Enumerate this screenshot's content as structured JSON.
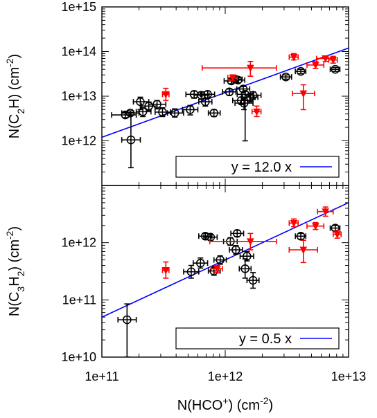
{
  "chart_data": [
    {
      "type": "scatter",
      "x_scale": "log",
      "y_scale": "log",
      "xlim": [
        100000000000.0,
        10000000000000.0
      ],
      "ylim": [
        100000000000.0,
        1000000000000000.0
      ],
      "yticks": [
        "1e+12",
        "1e+13",
        "1e+14",
        "1e+15"
      ],
      "ylabel_parts": [
        "N(C",
        "2",
        "H) (cm",
        "-2",
        ")"
      ],
      "legend": {
        "label": "y = 12.0 x",
        "position": "bottom-right"
      },
      "fit": {
        "slope": 12.0,
        "color": "#0000ff"
      },
      "colors": {
        "black_series": "#000000",
        "red_series": "#ff0000"
      },
      "black_points": [
        {
          "x": 172000000000.0,
          "y": 1050000000000.0,
          "xerr": [
            145000000000.0,
            205000000000.0
          ],
          "yerr": [
            250000000000.0,
            4300000000000.0
          ]
        },
        {
          "x": 155000000000.0,
          "y": 3800000000000.0,
          "xerr": [
            120000000000.0,
            190000000000.0
          ],
          "yerr": [
            3300000000000.0,
            4400000000000.0
          ]
        },
        {
          "x": 170000000000.0,
          "y": 4200000000000.0,
          "xerr": [
            145000000000.0,
            200000000000.0
          ],
          "yerr": [
            3700000000000.0,
            4700000000000.0
          ]
        },
        {
          "x": 205000000000.0,
          "y": 7500000000000.0,
          "xerr": [
            180000000000.0,
            240000000000.0
          ],
          "yerr": [
            5000000000000.0,
            9500000000000.0
          ]
        },
        {
          "x": 215000000000.0,
          "y": 4500000000000.0,
          "xerr": [
            190000000000.0,
            250000000000.0
          ],
          "yerr": [
            3500000000000.0,
            5500000000000.0
          ]
        },
        {
          "x": 240000000000.0,
          "y": 6000000000000.0,
          "xerr": [
            210000000000.0,
            280000000000.0
          ],
          "yerr": [
            4800000000000.0,
            7400000000000.0
          ]
        },
        {
          "x": 280000000000.0,
          "y": 6600000000000.0,
          "xerr": [
            240000000000.0,
            330000000000.0
          ],
          "yerr": [
            5200000000000.0,
            8000000000000.0
          ]
        },
        {
          "x": 310000000000.0,
          "y": 4400000000000.0,
          "xerr": [
            270000000000.0,
            360000000000.0
          ],
          "yerr": [
            3500000000000.0,
            5500000000000.0
          ]
        },
        {
          "x": 390000000000.0,
          "y": 4200000000000.0,
          "xerr": [
            340000000000.0,
            460000000000.0
          ],
          "yerr": [
            3400000000000.0,
            5200000000000.0
          ]
        },
        {
          "x": 520000000000.0,
          "y": 5000000000000.0,
          "xerr": [
            450000000000.0,
            600000000000.0
          ],
          "yerr": [
            3800000000000.0,
            6200000000000.0
          ]
        },
        {
          "x": 560000000000.0,
          "y": 11000000000000.0,
          "xerr": [
            480000000000.0,
            650000000000.0
          ],
          "yerr": [
            9000000000000.0,
            13000000000000.0
          ]
        },
        {
          "x": 640000000000.0,
          "y": 10500000000000.0,
          "xerr": [
            560000000000.0,
            740000000000.0
          ],
          "yerr": [
            8500000000000.0,
            12500000000000.0
          ]
        },
        {
          "x": 720000000000.0,
          "y": 11000000000000.0,
          "xerr": [
            630000000000.0,
            820000000000.0
          ],
          "yerr": [
            9000000000000.0,
            13000000000000.0
          ]
        },
        {
          "x": 690000000000.0,
          "y": 7500000000000.0,
          "xerr": [
            610000000000.0,
            780000000000.0
          ],
          "yerr": [
            6000000000000.0,
            9000000000000.0
          ]
        },
        {
          "x": 810000000000.0,
          "y": 4200000000000.0,
          "xerr": [
            730000000000.0,
            910000000000.0
          ],
          "yerr": [
            3500000000000.0,
            5000000000000.0
          ]
        },
        {
          "x": 1080000000000.0,
          "y": 12500000000000.0,
          "xerr": [
            950000000000.0,
            1220000000000.0
          ],
          "yerr": [
            10500000000000.0,
            14500000000000.0
          ]
        },
        {
          "x": 1120000000000.0,
          "y": 22000000000000.0,
          "xerr": [
            980000000000.0,
            1280000000000.0
          ],
          "yerr": [
            19000000000000.0,
            25000000000000.0
          ]
        },
        {
          "x": 1200000000000.0,
          "y": 24000000000000.0,
          "xerr": [
            1050000000000.0,
            1370000000000.0
          ],
          "yerr": [
            21000000000000.0,
            27000000000000.0
          ]
        },
        {
          "x": 1270000000000.0,
          "y": 23000000000000.0,
          "xerr": [
            1120000000000.0,
            1440000000000.0
          ],
          "yerr": [
            20000000000000.0,
            26000000000000.0
          ]
        },
        {
          "x": 1400000000000.0,
          "y": 14500000000000.0,
          "xerr": [
            1240000000000.0,
            1580000000000.0
          ],
          "yerr": [
            12500000000000.0,
            16500000000000.0
          ]
        },
        {
          "x": 1350000000000.0,
          "y": 8000000000000.0,
          "xerr": [
            1150000000000.0,
            1580000000000.0
          ],
          "yerr": [
            6500000000000.0,
            9500000000000.0
          ]
        },
        {
          "x": 1420000000000.0,
          "y": 7000000000000.0,
          "xerr": [
            1200000000000.0,
            1680000000000.0
          ],
          "yerr": [
            5000000000000.0,
            9000000000000.0
          ]
        },
        {
          "x": 1450000000000.0,
          "y": 11000000000000.0,
          "xerr": [
            1250000000000.0,
            1700000000000.0
          ],
          "yerr": [
            1000000000000.0,
            13000000000000.0
          ]
        },
        {
          "x": 1600000000000.0,
          "y": 9500000000000.0,
          "xerr": [
            1380000000000.0,
            1840000000000.0
          ],
          "yerr": [
            7500000000000.0,
            11500000000000.0
          ]
        },
        {
          "x": 1680000000000.0,
          "y": 10500000000000.0,
          "xerr": [
            1450000000000.0,
            1950000000000.0
          ],
          "yerr": [
            8500000000000.0,
            12500000000000.0
          ]
        },
        {
          "x": 3100000000000.0,
          "y": 27000000000000.0,
          "xerr": [
            2800000000000.0,
            3450000000000.0
          ],
          "yerr": [
            24000000000000.0,
            30000000000000.0
          ]
        },
        {
          "x": 4100000000000.0,
          "y": 36000000000000.0,
          "xerr": [
            3700000000000.0,
            4500000000000.0
          ],
          "yerr": [
            32000000000000.0,
            40000000000000.0
          ]
        },
        {
          "x": 7800000000000.0,
          "y": 40000000000000.0,
          "xerr": [
            7100000000000.0,
            8500000000000.0
          ],
          "yerr": [
            36000000000000.0,
            44000000000000.0
          ]
        }
      ],
      "red_points": [
        {
          "x": 330000000000.0,
          "y": 11000000000000.0,
          "xerr": [
            310000000000.0,
            350000000000.0
          ],
          "yerr": [
            8000000000000.0,
            15000000000000.0
          ]
        },
        {
          "x": 1600000000000.0,
          "y": 43000000000000.0,
          "xerr": [
            650000000000.0,
            2600000000000.0
          ],
          "yerr": [
            28000000000000.0,
            60000000000000.0
          ]
        },
        {
          "x": 1150000000000.0,
          "y": 26000000000000.0,
          "xerr": [
            1050000000000.0,
            1250000000000.0
          ],
          "yerr": [
            22000000000000.0,
            30000000000000.0
          ]
        },
        {
          "x": 1800000000000.0,
          "y": 4500000000000.0,
          "xerr": [
            1650000000000.0,
            1950000000000.0
          ],
          "yerr": [
            3500000000000.0,
            6000000000000.0
          ]
        },
        {
          "x": 3600000000000.0,
          "y": 75000000000000.0,
          "xerr": [
            3300000000000.0,
            3900000000000.0
          ],
          "yerr": [
            65000000000000.0,
            90000000000000.0
          ]
        },
        {
          "x": 4300000000000.0,
          "y": 11500000000000.0,
          "xerr": [
            3500000000000.0,
            5300000000000.0
          ],
          "yerr": [
            5000000000000.0,
            18000000000000.0
          ]
        },
        {
          "x": 5400000000000.0,
          "y": 50000000000000.0,
          "xerr": [
            4600000000000.0,
            6300000000000.0
          ],
          "yerr": [
            42000000000000.0,
            59000000000000.0
          ]
        },
        {
          "x": 6500000000000.0,
          "y": 70000000000000.0,
          "xerr": [
            5500000000000.0,
            7600000000000.0
          ],
          "yerr": [
            60000000000000.0,
            80000000000000.0
          ]
        },
        {
          "x": 7500000000000.0,
          "y": 65000000000000.0,
          "xerr": [
            6900000000000.0,
            8100000000000.0
          ],
          "yerr": [
            55000000000000.0,
            78000000000000.0
          ]
        }
      ]
    },
    {
      "type": "scatter",
      "x_scale": "log",
      "y_scale": "log",
      "xlim": [
        100000000000.0,
        10000000000000.0
      ],
      "ylim": [
        10000000000.0,
        10000000000000.0
      ],
      "xticks": [
        "1e+11",
        "1e+12",
        "1e+13"
      ],
      "yticks": [
        "1e+10",
        "1e+11",
        "1e+12"
      ],
      "xlabel_parts": [
        "N(HCO",
        "+",
        ") (cm",
        "-2",
        ")"
      ],
      "ylabel_parts": [
        "N(C",
        "3",
        "H",
        "2",
        ") (cm",
        "-2",
        ")"
      ],
      "legend": {
        "label": "y = 0.5 x",
        "position": "bottom-right"
      },
      "fit": {
        "slope": 0.5,
        "color": "#0000ff"
      },
      "colors": {
        "black_series": "#000000",
        "red_series": "#ff0000"
      },
      "black_points": [
        {
          "x": 160000000000.0,
          "y": 45000000000.0,
          "xerr": [
            135000000000.0,
            190000000000.0
          ],
          "yerr": [
            10000000000.0,
            85000000000.0
          ]
        },
        {
          "x": 530000000000.0,
          "y": 310000000000.0,
          "xerr": [
            460000000000.0,
            610000000000.0
          ],
          "yerr": [
            240000000000.0,
            400000000000.0
          ]
        },
        {
          "x": 630000000000.0,
          "y": 440000000000.0,
          "xerr": [
            550000000000.0,
            720000000000.0
          ],
          "yerr": [
            360000000000.0,
            540000000000.0
          ]
        },
        {
          "x": 690000000000.0,
          "y": 1300000000000.0,
          "xerr": [
            610000000000.0,
            780000000000.0
          ],
          "yerr": [
            1150000000000.0,
            1450000000000.0
          ]
        },
        {
          "x": 760000000000.0,
          "y": 1250000000000.0,
          "xerr": [
            670000000000.0,
            860000000000.0
          ],
          "yerr": [
            1100000000000.0,
            1400000000000.0
          ]
        },
        {
          "x": 810000000000.0,
          "y": 320000000000.0,
          "xerr": [
            730000000000.0,
            910000000000.0
          ],
          "yerr": [
            270000000000.0,
            380000000000.0
          ]
        },
        {
          "x": 910000000000.0,
          "y": 500000000000.0,
          "xerr": [
            810000000000.0,
            1020000000000.0
          ],
          "yerr": [
            420000000000.0,
            590000000000.0
          ]
        },
        {
          "x": 1100000000000.0,
          "y": 1050000000000.0,
          "xerr": [
            970000000000.0,
            1250000000000.0
          ],
          "yerr": [
            900000000000.0,
            1220000000000.0
          ]
        },
        {
          "x": 1220000000000.0,
          "y": 750000000000.0,
          "xerr": [
            1080000000000.0,
            1380000000000.0
          ],
          "yerr": [
            630000000000.0,
            890000000000.0
          ]
        },
        {
          "x": 1250000000000.0,
          "y": 1450000000000.0,
          "xerr": [
            1110000000000.0,
            1410000000000.0
          ],
          "yerr": [
            1280000000000.0,
            1650000000000.0
          ]
        },
        {
          "x": 1450000000000.0,
          "y": 350000000000.0,
          "xerr": [
            1300000000000.0,
            1620000000000.0
          ],
          "yerr": [
            240000000000.0,
            520000000000.0
          ]
        },
        {
          "x": 1500000000000.0,
          "y": 580000000000.0,
          "xerr": [
            1320000000000.0,
            1700000000000.0
          ],
          "yerr": [
            480000000000.0,
            700000000000.0
          ]
        },
        {
          "x": 1680000000000.0,
          "y": 220000000000.0,
          "xerr": [
            1500000000000.0,
            1880000000000.0
          ],
          "yerr": [
            160000000000.0,
            300000000000.0
          ]
        },
        {
          "x": 4100000000000.0,
          "y": 1300000000000.0,
          "xerr": [
            3700000000000.0,
            4500000000000.0
          ],
          "yerr": [
            1150000000000.0,
            1450000000000.0
          ]
        },
        {
          "x": 7800000000000.0,
          "y": 1800000000000.0,
          "xerr": [
            7100000000000.0,
            8500000000000.0
          ],
          "yerr": [
            1600000000000.0,
            2000000000000.0
          ]
        }
      ],
      "red_points": [
        {
          "x": 330000000000.0,
          "y": 330000000000.0,
          "xerr": [
            310000000000.0,
            350000000000.0
          ],
          "yerr": [
            240000000000.0,
            460000000000.0
          ]
        },
        {
          "x": 860000000000.0,
          "y": 350000000000.0,
          "xerr": [
            770000000000.0,
            950000000000.0
          ],
          "yerr": [
            300000000000.0,
            400000000000.0
          ]
        },
        {
          "x": 1600000000000.0,
          "y": 1050000000000.0,
          "xerr": [
            750000000000.0,
            2600000000000.0
          ],
          "yerr": [
            750000000000.0,
            1450000000000.0
          ]
        },
        {
          "x": 3600000000000.0,
          "y": 2200000000000.0,
          "xerr": [
            3300000000000.0,
            3900000000000.0
          ],
          "yerr": [
            1900000000000.0,
            2600000000000.0
          ]
        },
        {
          "x": 4300000000000.0,
          "y": 750000000000.0,
          "xerr": [
            3300000000000.0,
            5600000000000.0
          ],
          "yerr": [
            450000000000.0,
            1100000000000.0
          ]
        },
        {
          "x": 5400000000000.0,
          "y": 1950000000000.0,
          "xerr": [
            4600000000000.0,
            6300000000000.0
          ],
          "yerr": [
            1700000000000.0,
            2250000000000.0
          ]
        },
        {
          "x": 6500000000000.0,
          "y": 3500000000000.0,
          "xerr": [
            5600000000000.0,
            7500000000000.0
          ],
          "yerr": [
            2900000000000.0,
            4200000000000.0
          ]
        },
        {
          "x": 8100000000000.0,
          "y": 1400000000000.0,
          "xerr": [
            7500000000000.0,
            8700000000000.0
          ],
          "yerr": [
            1200000000000.0,
            1650000000000.0
          ]
        }
      ]
    }
  ]
}
